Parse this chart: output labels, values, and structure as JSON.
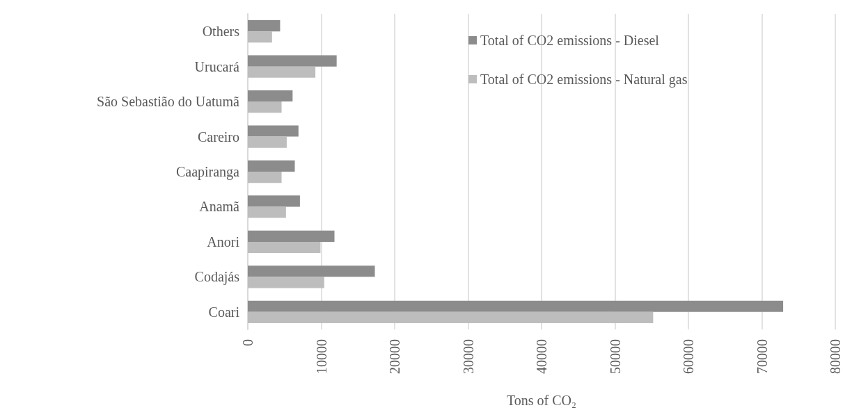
{
  "chart_data": {
    "type": "bar",
    "orientation": "horizontal",
    "xlabel": "Tons of CO₂",
    "categories": [
      "Others",
      "Urucará",
      "São Sebastião do Uatumã",
      "Careiro",
      "Caapiranga",
      "Anamã",
      "Anori",
      "Codajás",
      "Coari"
    ],
    "series": [
      {
        "name": "Total of CO2 emissions - Diesel",
        "color": "#8c8c8c",
        "values": [
          4400,
          12100,
          6100,
          6900,
          6400,
          7100,
          11800,
          17300,
          72900
        ]
      },
      {
        "name": "Total of CO2 emissions - Natural gas",
        "color": "#bdbdbd",
        "values": [
          3300,
          9200,
          4600,
          5300,
          4600,
          5200,
          9900,
          10400,
          55200
        ]
      }
    ],
    "xlim": [
      0,
      80000
    ],
    "xticks": [
      0,
      10000,
      20000,
      30000,
      40000,
      50000,
      60000,
      70000,
      80000
    ],
    "grid": "x",
    "legend": "top right"
  }
}
